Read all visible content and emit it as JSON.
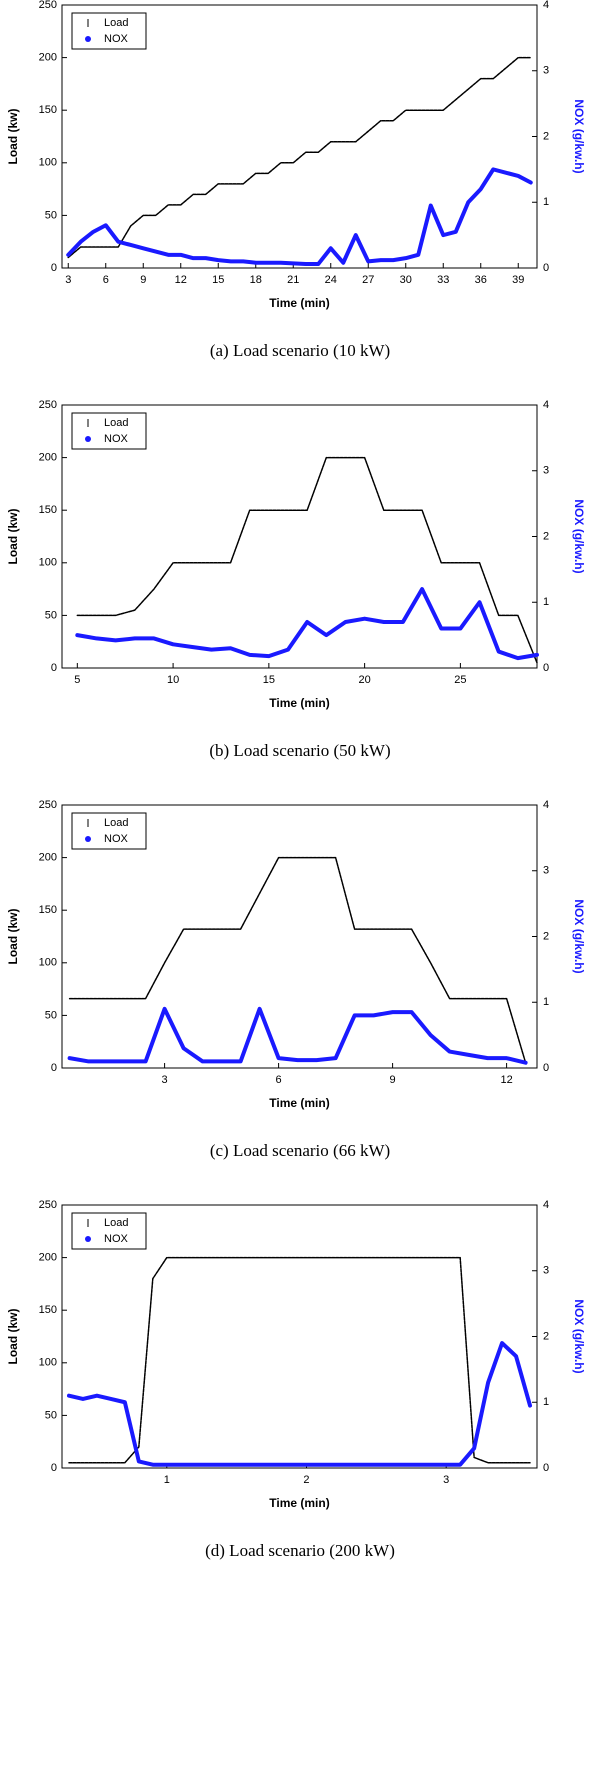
{
  "chart_data": [
    {
      "type": "line",
      "caption": "(a) Load scenario (10 kW)",
      "x_label": "Time (min)",
      "y_label": "Load (kw)",
      "y2_label": "NOX (g/kw.h)",
      "legend": "upper left",
      "xlim": [
        2.5,
        40.5
      ],
      "xticks": [
        3,
        6,
        9,
        12,
        15,
        18,
        21,
        24,
        27,
        30,
        33,
        36,
        39
      ],
      "ylim": [
        0,
        250
      ],
      "yticks": [
        0,
        50,
        100,
        150,
        200,
        250
      ],
      "y2lim": [
        0,
        4
      ],
      "y2ticks": [
        0,
        1,
        2,
        3,
        4
      ],
      "x": [
        3,
        4,
        5,
        6,
        7,
        8,
        9,
        10,
        11,
        12,
        13,
        14,
        15,
        16,
        17,
        18,
        19,
        20,
        21,
        22,
        23,
        24,
        25,
        26,
        27,
        28,
        29,
        30,
        31,
        32,
        33,
        34,
        35,
        36,
        37,
        38,
        39,
        40
      ],
      "series": [
        {
          "name": "Load",
          "color": "#000000",
          "values": [
            10,
            20,
            20,
            20,
            20,
            40,
            50,
            50,
            60,
            60,
            70,
            70,
            80,
            80,
            80,
            90,
            90,
            100,
            100,
            110,
            110,
            120,
            120,
            120,
            130,
            140,
            140,
            150,
            150,
            150,
            150,
            160,
            170,
            180,
            180,
            190,
            200,
            200
          ]
        },
        {
          "name": "NOX",
          "color": "#1a1aff",
          "axis": "y2",
          "values": [
            0.2,
            0.4,
            0.55,
            0.65,
            0.4,
            0.35,
            0.3,
            0.25,
            0.2,
            0.2,
            0.15,
            0.15,
            0.12,
            0.1,
            0.1,
            0.08,
            0.08,
            0.08,
            0.07,
            0.06,
            0.06,
            0.3,
            0.08,
            0.5,
            0.1,
            0.12,
            0.12,
            0.15,
            0.2,
            0.95,
            0.5,
            0.55,
            1.0,
            1.2,
            1.5,
            1.45,
            1.4,
            1.3
          ]
        }
      ]
    },
    {
      "type": "line",
      "caption": "(b) Load scenario (50 kW)",
      "x_label": "Time (min)",
      "y_label": "Load (kw)",
      "y2_label": "NOX (g/kw.h)",
      "legend": "upper left",
      "xlim": [
        4.2,
        29
      ],
      "xticks": [
        5,
        10,
        15,
        20,
        25
      ],
      "ylim": [
        0,
        250
      ],
      "yticks": [
        0,
        50,
        100,
        150,
        200,
        250
      ],
      "y2lim": [
        0,
        4
      ],
      "y2ticks": [
        0,
        1,
        2,
        3,
        4
      ],
      "x": [
        5,
        6,
        7,
        8,
        9,
        10,
        11,
        12,
        13,
        14,
        15,
        16,
        17,
        18,
        19,
        20,
        21,
        22,
        23,
        24,
        25,
        26,
        27,
        28,
        29
      ],
      "series": [
        {
          "name": "Load",
          "color": "#000000",
          "values": [
            50,
            50,
            50,
            55,
            75,
            100,
            100,
            100,
            100,
            150,
            150,
            150,
            150,
            200,
            200,
            200,
            150,
            150,
            150,
            100,
            100,
            100,
            50,
            50,
            5
          ]
        },
        {
          "name": "NOX",
          "color": "#1a1aff",
          "axis": "y2",
          "values": [
            0.5,
            0.45,
            0.42,
            0.45,
            0.45,
            0.36,
            0.32,
            0.28,
            0.3,
            0.2,
            0.18,
            0.28,
            0.7,
            0.5,
            0.7,
            0.75,
            0.7,
            0.7,
            1.2,
            0.6,
            0.6,
            1.0,
            0.25,
            0.15,
            0.2
          ]
        }
      ]
    },
    {
      "type": "line",
      "caption": "(c)  Load scenario (66 kW)",
      "x_label": "Time (min)",
      "y_label": "Load (kw)",
      "y2_label": "NOX (g/kw.h)",
      "legend": "upper left",
      "xlim": [
        0.3,
        12.8
      ],
      "xticks": [
        3,
        6,
        9,
        12
      ],
      "ylim": [
        0,
        250
      ],
      "yticks": [
        0,
        50,
        100,
        150,
        200,
        250
      ],
      "y2lim": [
        0,
        4
      ],
      "y2ticks": [
        0,
        1,
        2,
        3,
        4
      ],
      "x": [
        0.5,
        1,
        1.5,
        2,
        2.5,
        3,
        3.5,
        4,
        4.5,
        5,
        5.5,
        6,
        6.5,
        7,
        7.5,
        8,
        8.5,
        9,
        9.5,
        10,
        10.5,
        11,
        11.5,
        12,
        12.5
      ],
      "series": [
        {
          "name": "Load",
          "color": "#000000",
          "values": [
            66,
            66,
            66,
            66,
            66,
            100,
            132,
            132,
            132,
            132,
            166,
            200,
            200,
            200,
            200,
            132,
            132,
            132,
            132,
            100,
            66,
            66,
            66,
            66,
            5
          ]
        },
        {
          "name": "NOX",
          "color": "#1a1aff",
          "axis": "y2",
          "values": [
            0.15,
            0.1,
            0.1,
            0.1,
            0.1,
            0.9,
            0.3,
            0.1,
            0.1,
            0.1,
            0.9,
            0.15,
            0.12,
            0.12,
            0.15,
            0.8,
            0.8,
            0.85,
            0.85,
            0.5,
            0.25,
            0.2,
            0.15,
            0.15,
            0.08
          ]
        }
      ]
    },
    {
      "type": "line",
      "caption": "(d)  Load scenario (200 kW)",
      "x_label": "Time (min)",
      "y_label": "Load (kw)",
      "y2_label": "NOX (g/kw.h)",
      "legend": "upper left",
      "xlim": [
        0.25,
        3.65
      ],
      "xticks": [
        1,
        2,
        3
      ],
      "ylim": [
        0,
        250
      ],
      "yticks": [
        0,
        50,
        100,
        150,
        200,
        250
      ],
      "y2lim": [
        0,
        4
      ],
      "y2ticks": [
        0,
        1,
        2,
        3,
        4
      ],
      "x": [
        0.3,
        0.4,
        0.5,
        0.6,
        0.7,
        0.8,
        0.9,
        1.0,
        1.1,
        1.2,
        1.3,
        1.4,
        1.5,
        1.6,
        1.7,
        1.8,
        1.9,
        2.0,
        2.1,
        2.2,
        2.3,
        2.4,
        2.5,
        2.6,
        2.7,
        2.8,
        2.9,
        3.0,
        3.1,
        3.2,
        3.3,
        3.4,
        3.5,
        3.6
      ],
      "series": [
        {
          "name": "Load",
          "color": "#000000",
          "values": [
            5,
            5,
            5,
            5,
            5,
            20,
            180,
            200,
            200,
            200,
            200,
            200,
            200,
            200,
            200,
            200,
            200,
            200,
            200,
            200,
            200,
            200,
            200,
            200,
            200,
            200,
            200,
            200,
            200,
            10,
            5,
            5,
            5,
            5
          ]
        },
        {
          "name": "NOX",
          "color": "#1a1aff",
          "axis": "y2",
          "values": [
            1.1,
            1.05,
            1.1,
            1.05,
            1.0,
            0.1,
            0.05,
            0.05,
            0.05,
            0.05,
            0.05,
            0.05,
            0.05,
            0.05,
            0.05,
            0.05,
            0.05,
            0.05,
            0.05,
            0.05,
            0.05,
            0.05,
            0.05,
            0.05,
            0.05,
            0.05,
            0.05,
            0.05,
            0.05,
            0.3,
            1.3,
            1.9,
            1.7,
            0.95
          ]
        }
      ]
    }
  ]
}
